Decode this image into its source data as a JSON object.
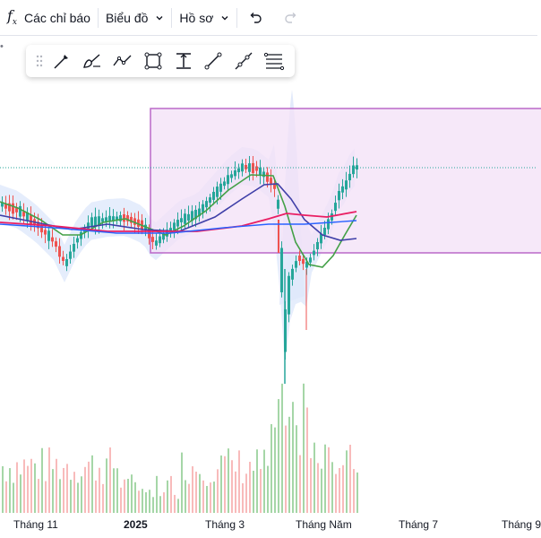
{
  "topbar": {
    "indicators_label": "Các chỉ báo",
    "chart_type_label": "Biểu đồ",
    "profile_label": "Hồ sơ"
  },
  "drawing_toolbar": {
    "tools": [
      "trend-line-tool",
      "brush-tool",
      "path-tool",
      "rectangle-tool",
      "price-range-tool",
      "line-tool",
      "segment-tool",
      "fib-retracement-tool"
    ]
  },
  "xaxis": {
    "labels": [
      "Tháng 11",
      "2025",
      "Tháng 3",
      "Tháng Năm",
      "Tháng 7",
      "Tháng 9"
    ]
  },
  "colors": {
    "up": "#26a69a",
    "down": "#ef5350",
    "rectangle_border": "#ba68c8",
    "rectangle_fill": "#f3e0f7",
    "ma_green": "#43a047",
    "ma_navy": "#3f3fa8",
    "ma_red": "#e91e63",
    "ma_blue": "#2962ff",
    "band_fill": "#dfe8fb"
  }
}
